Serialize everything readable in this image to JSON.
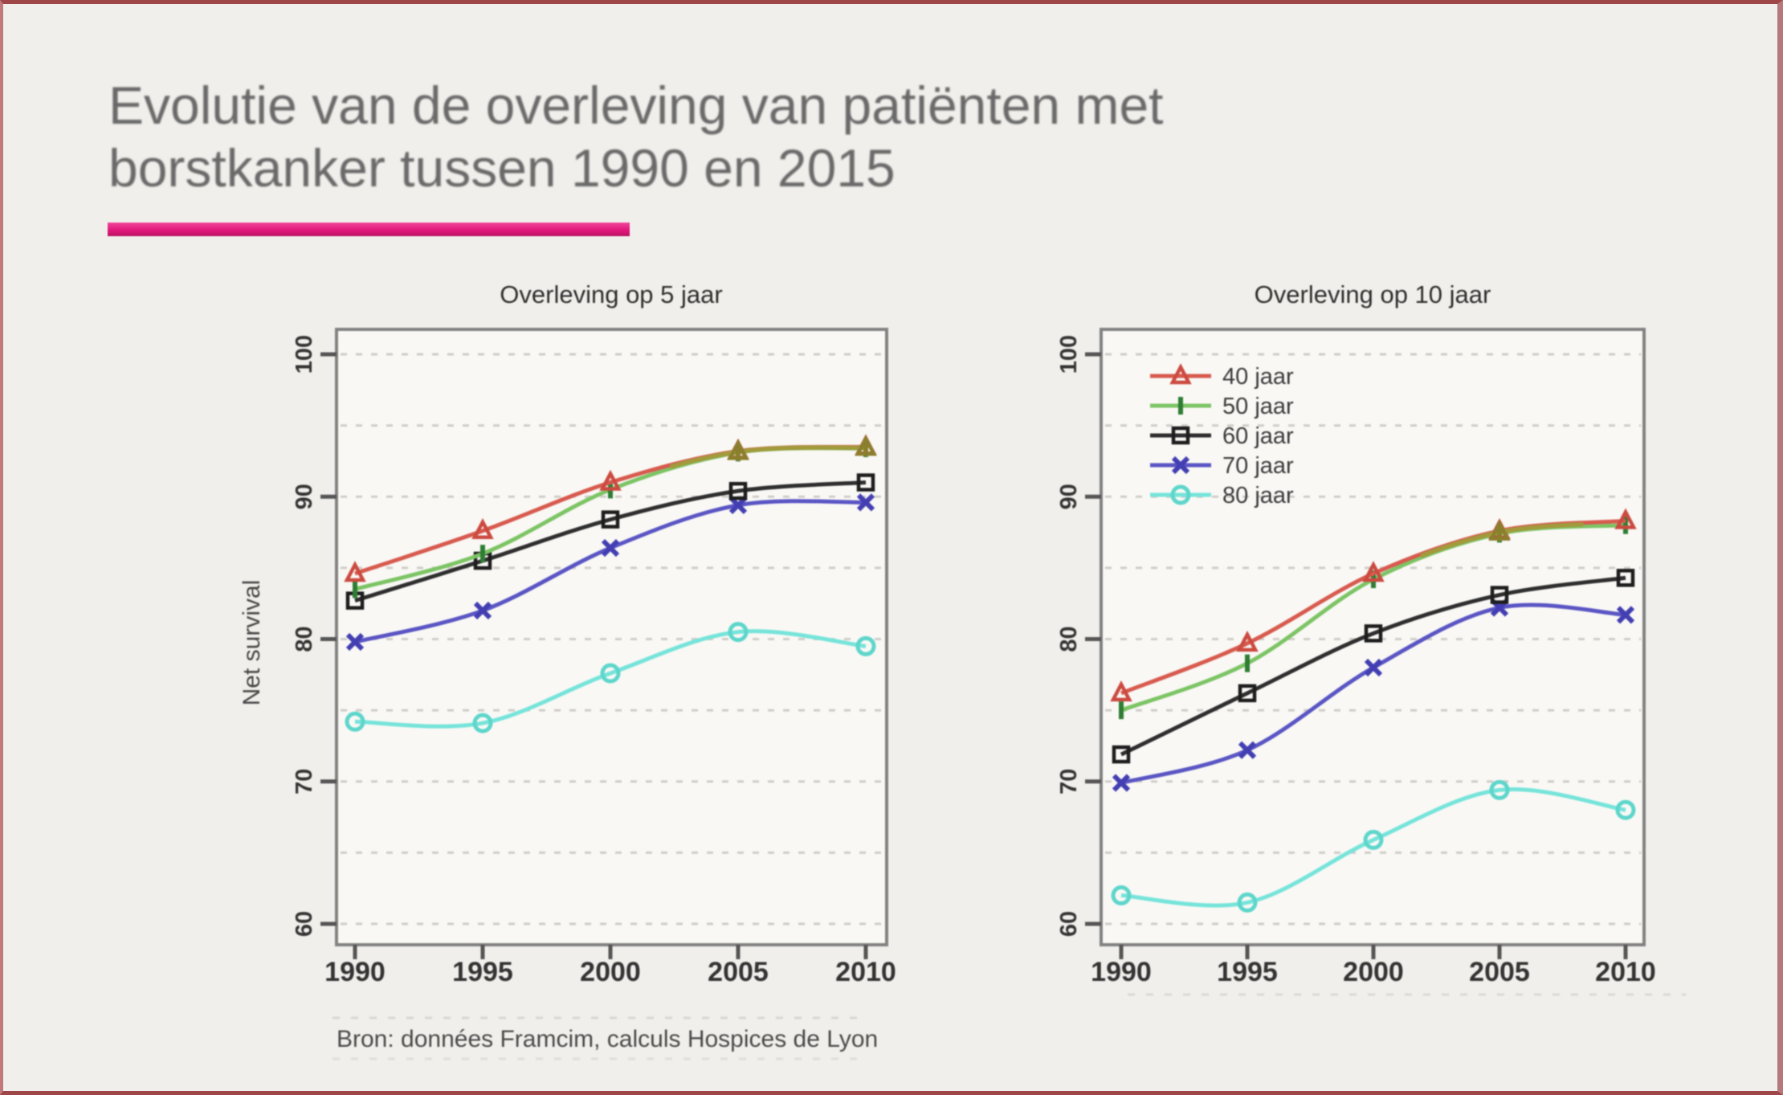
{
  "slide": {
    "title_line1": "Evolutie van de overleving van patiënten met",
    "title_line2": "borstkanker tussen 1990 en 2015",
    "source_note": "Bron: données Framcim, calculs Hospices de Lyon",
    "accent_color": "#e2187c",
    "frame_color": "#9f4649"
  },
  "chart_data": [
    {
      "id": "survival-5yr",
      "type": "line",
      "title": "Overleving op 5 jaar",
      "xlabel": "",
      "ylabel": "Net survival",
      "x": [
        1990,
        1995,
        2000,
        2005,
        2010
      ],
      "yticks": [
        60,
        70,
        80,
        90,
        100
      ],
      "grid_interval": 5,
      "ylim": [
        58,
        102
      ],
      "grid": "dashed",
      "legend": false,
      "series": [
        {
          "name": "40 jaar",
          "marker": "triangle",
          "color": "#d85a4e",
          "marker_color": "#cc4a40",
          "values": [
            84.6,
            87.6,
            91.0,
            93.2,
            93.5
          ]
        },
        {
          "name": "50 jaar",
          "marker": "vbar",
          "color": "#7cc464",
          "marker_color": "#2f7d33",
          "values": [
            83.5,
            86.0,
            90.5,
            93.1,
            93.4
          ]
        },
        {
          "name": "60 jaar",
          "marker": "square",
          "color": "#2e2e2e",
          "marker_color": "#1d1d1d",
          "values": [
            82.7,
            85.5,
            88.4,
            90.4,
            91.0
          ]
        },
        {
          "name": "70 jaar",
          "marker": "x",
          "color": "#5a55c4",
          "marker_color": "#433fb2",
          "values": [
            79.8,
            82.0,
            86.4,
            89.4,
            89.6
          ]
        },
        {
          "name": "80 jaar",
          "marker": "circle",
          "color": "#76e4da",
          "marker_color": "#5ed6cb",
          "values": [
            74.2,
            74.1,
            77.6,
            80.5,
            79.5
          ]
        }
      ]
    },
    {
      "id": "survival-10yr",
      "type": "line",
      "title": "Overleving op 10 jaar",
      "xlabel": "",
      "ylabel": "",
      "x": [
        1990,
        1995,
        2000,
        2005,
        2010
      ],
      "yticks": [
        60,
        70,
        80,
        90,
        100
      ],
      "grid_interval": 5,
      "ylim": [
        58,
        102
      ],
      "grid": "dashed",
      "legend": true,
      "legend_position": "top-left",
      "series": [
        {
          "name": "40 jaar",
          "marker": "triangle",
          "color": "#d85a4e",
          "marker_color": "#cc4a40",
          "values": [
            76.2,
            79.7,
            84.6,
            87.6,
            88.3
          ]
        },
        {
          "name": "50 jaar",
          "marker": "vbar",
          "color": "#7cc464",
          "marker_color": "#2f7d33",
          "values": [
            75.0,
            78.3,
            84.2,
            87.4,
            88.0
          ]
        },
        {
          "name": "60 jaar",
          "marker": "square",
          "color": "#2e2e2e",
          "marker_color": "#1d1d1d",
          "values": [
            71.9,
            76.2,
            80.4,
            83.1,
            84.3
          ]
        },
        {
          "name": "70 jaar",
          "marker": "x",
          "color": "#5a55c4",
          "marker_color": "#433fb2",
          "values": [
            69.9,
            72.2,
            78.0,
            82.2,
            81.7
          ]
        },
        {
          "name": "80 jaar",
          "marker": "circle",
          "color": "#76e4da",
          "marker_color": "#5ed6cb",
          "values": [
            62.0,
            61.5,
            65.9,
            69.4,
            68.0
          ]
        }
      ]
    }
  ]
}
